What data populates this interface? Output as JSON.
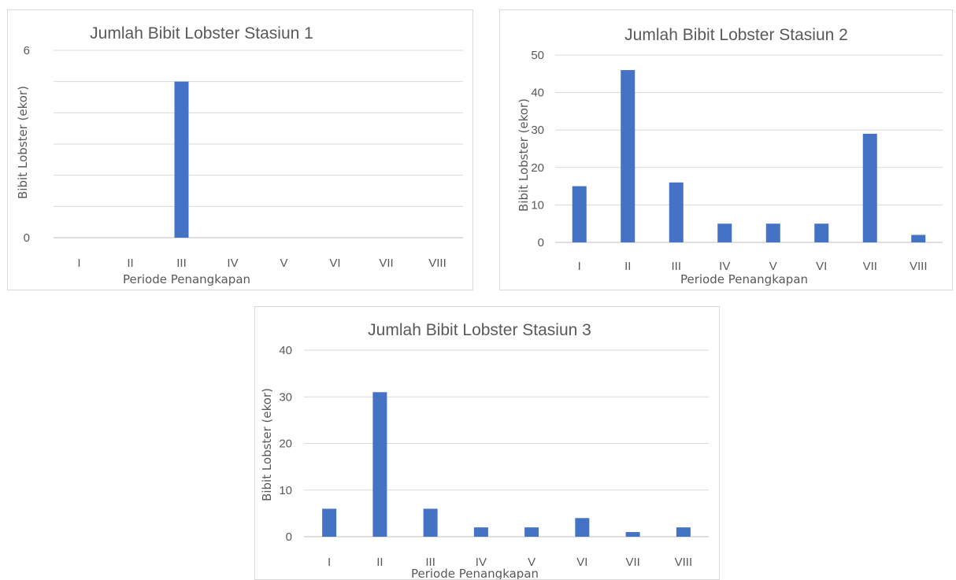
{
  "chart_data": [
    {
      "type": "bar",
      "title": "Jumlah Bibit Lobster Stasiun 1",
      "xlabel": "Periode Penangkapan",
      "ylabel": "Bibit Lobster (ekor)",
      "categories": [
        "I",
        "II",
        "III",
        "IV",
        "V",
        "VI",
        "VII",
        "VIII"
      ],
      "values": [
        0,
        0,
        5,
        0,
        0,
        0,
        0,
        0
      ],
      "ylim": [
        0,
        6
      ],
      "yticks_labeled": [
        "0",
        "6"
      ],
      "gridlines": [
        0,
        1,
        2,
        3,
        4,
        5,
        6
      ],
      "grid": true,
      "color": "#4472c4"
    },
    {
      "type": "bar",
      "title": "Jumlah Bibit Lobster Stasiun 2",
      "xlabel": "Periode Penangkapan",
      "ylabel": "Bibit Lobster (ekor)",
      "categories": [
        "I",
        "II",
        "III",
        "IV",
        "V",
        "VI",
        "VII",
        "VIII"
      ],
      "values": [
        15,
        46,
        16,
        5,
        5,
        5,
        29,
        2
      ],
      "ylim": [
        0,
        50
      ],
      "yticks_labeled": [
        "0",
        "10",
        "20",
        "30",
        "40",
        "50"
      ],
      "gridlines": [
        0,
        10,
        20,
        30,
        40,
        50
      ],
      "grid": true,
      "color": "#4472c4"
    },
    {
      "type": "bar",
      "title": "Jumlah Bibit Lobster Stasiun 3",
      "xlabel": "Periode Penangkapan",
      "ylabel": "Bibit Lobster (ekor)",
      "categories": [
        "I",
        "II",
        "III",
        "IV",
        "V",
        "VI",
        "VII",
        "VIII"
      ],
      "values": [
        6,
        31,
        6,
        2,
        2,
        4,
        1,
        2
      ],
      "ylim": [
        0,
        40
      ],
      "yticks_labeled": [
        "0",
        "10",
        "20",
        "30",
        "40"
      ],
      "gridlines": [
        0,
        10,
        20,
        30,
        40
      ],
      "grid": true,
      "color": "#4472c4"
    }
  ]
}
